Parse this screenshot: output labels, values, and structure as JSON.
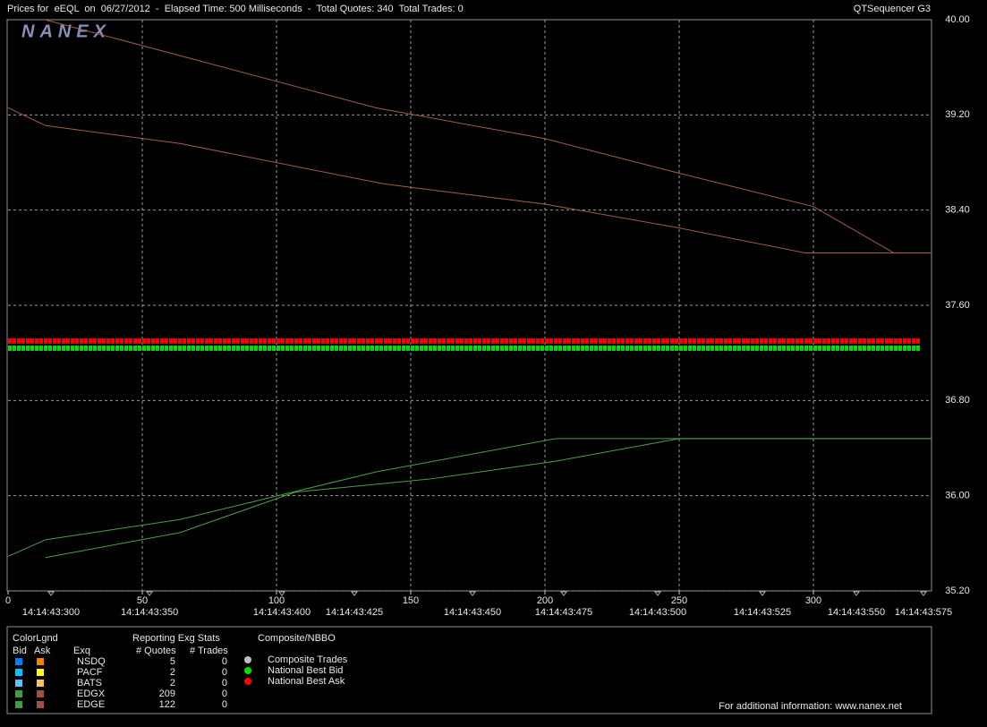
{
  "chart_data": {
    "type": "line",
    "title": "Prices for  eEQL  on  06/27/2012  -  Elapsed Time: 500 Milliseconds  -  Total Quotes: 340  Total Trades: 0",
    "subtitle": "QTSequencer G3",
    "watermark": "NANEX",
    "xlim": [
      0,
      344
    ],
    "xticks": [
      0,
      50,
      100,
      150,
      200,
      250,
      300
    ],
    "ylim": [
      35.2,
      40.0
    ],
    "yticks": [
      {
        "value": 35.2,
        "label": "35.20"
      },
      {
        "value": 36.0,
        "label": "36.00"
      },
      {
        "value": 36.8,
        "label": "36.80"
      },
      {
        "value": 37.6,
        "label": "37.60"
      },
      {
        "value": 38.4,
        "label": "38.40"
      },
      {
        "value": 39.2,
        "label": "39.20"
      },
      {
        "value": 40.0,
        "label": "40.00"
      }
    ],
    "grid": true,
    "time_labels": [
      {
        "value": 16,
        "label": "14:14:43:300"
      },
      {
        "value": 52.7,
        "label": "14:14:43:350"
      },
      {
        "value": 102,
        "label": "14:14:43:400"
      },
      {
        "value": 129,
        "label": "14:14:43:425"
      },
      {
        "value": 173,
        "label": "14:14:43:450"
      },
      {
        "value": 207,
        "label": "14:14:43:475"
      },
      {
        "value": 242,
        "label": "14:14:43:500"
      },
      {
        "value": 281,
        "label": "14:14:43:525"
      },
      {
        "value": 316,
        "label": "14:14:43:550"
      },
      {
        "value": 341,
        "label": "14:14:43:575"
      }
    ],
    "series": [
      {
        "color": "#a85a48",
        "x": [
          13.7,
          137,
          200,
          250,
          300,
          330,
          344
        ],
        "values": [
          40.0,
          39.26,
          39.0,
          38.71,
          38.43,
          38.04,
          38.04
        ]
      },
      {
        "color": "#a85a48",
        "x": [
          0,
          14,
          64,
          140,
          200,
          250,
          297,
          344
        ],
        "values": [
          39.26,
          39.11,
          38.96,
          38.62,
          38.45,
          38.25,
          38.04,
          38.04
        ]
      },
      {
        "color": "#48a048",
        "x": [
          0,
          14,
          64,
          137,
          204,
          344
        ],
        "values": [
          35.49,
          35.63,
          35.8,
          36.2,
          36.48,
          36.48
        ]
      },
      {
        "color": "#48a048",
        "x": [
          14,
          64,
          107,
          157,
          204,
          250,
          344
        ],
        "values": [
          35.48,
          35.69,
          36.03,
          36.14,
          36.29,
          36.48,
          36.48
        ]
      },
      {
        "name": "National Best Ask",
        "color": "#ff0000",
        "x": [
          0,
          340
        ],
        "values": [
          37.3,
          37.3
        ]
      },
      {
        "name": "National Best Bid",
        "color": "#00e000",
        "x": [
          0,
          340
        ],
        "values": [
          37.24,
          37.24
        ]
      }
    ]
  },
  "legend": {
    "title": "ColorLgnd",
    "bid": "Bid",
    "ask": "Ask",
    "exq": "Exq",
    "stats_title": "Reporting Exg Stats",
    "quotes": "# Quotes",
    "trades": "# Trades",
    "rows": [
      {
        "exchange": "NSDQ",
        "quotes": "5",
        "trades": "0",
        "bid_color": "#0080ff",
        "ask_color": "#ff8000"
      },
      {
        "exchange": "PACF",
        "quotes": "2",
        "trades": "0",
        "bid_color": "#00c8ff",
        "ask_color": "#ffff00"
      },
      {
        "exchange": "BATS",
        "quotes": "2",
        "trades": "0",
        "bid_color": "#60c0ff",
        "ask_color": "#ffc060"
      },
      {
        "exchange": "EDGX",
        "quotes": "209",
        "trades": "0",
        "bid_color": "#40a040",
        "ask_color": "#a05040"
      },
      {
        "exchange": "EDGE",
        "quotes": "122",
        "trades": "0",
        "bid_color": "#40a040",
        "ask_color": "#a05040"
      }
    ],
    "composite_title": "Composite/NBBO",
    "composite": [
      {
        "label": "Composite Trades",
        "color": "#c0c0c0"
      },
      {
        "label": "National Best Bid",
        "color": "#00e000"
      },
      {
        "label": "National Best Ask",
        "color": "#ff0000"
      }
    ],
    "footer": "For additional information: www.nanex.net"
  }
}
